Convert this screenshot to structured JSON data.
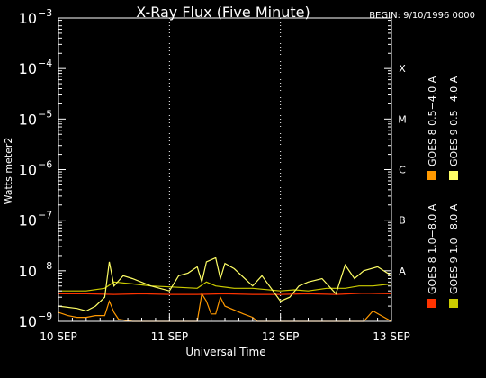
{
  "chart_data": {
    "type": "line",
    "title": "X-Ray Flux (Five Minute)",
    "begin_label": "BEGIN: 9/10/1996 0000",
    "xlabel": "Universal Time",
    "ylabel": "Watts meter2",
    "y_scale": "log",
    "ylim": [
      1e-09,
      0.001
    ],
    "xlim": [
      "1996-09-10T00:00",
      "1996-09-13T00:00"
    ],
    "y_ticks": [
      {
        "value": 1e-09,
        "base": "10",
        "exp": "−9"
      },
      {
        "value": 1e-08,
        "base": "10",
        "exp": "−8"
      },
      {
        "value": 1e-07,
        "base": "10",
        "exp": "−7"
      },
      {
        "value": 1e-06,
        "base": "10",
        "exp": "−6"
      },
      {
        "value": 1e-05,
        "base": "10",
        "exp": "−5"
      },
      {
        "value": 0.0001,
        "base": "10",
        "exp": "−4"
      },
      {
        "value": 0.001,
        "base": "10",
        "exp": "−3"
      }
    ],
    "x_ticks": [
      {
        "value": "1996-09-10T00:00",
        "label": "10 SEP"
      },
      {
        "value": "1996-09-11T00:00",
        "label": "11 SEP"
      },
      {
        "value": "1996-09-12T00:00",
        "label": "12 SEP"
      },
      {
        "value": "1996-09-13T00:00",
        "label": "13 SEP"
      }
    ],
    "flare_classes": [
      {
        "label": "X",
        "value": 0.0001
      },
      {
        "label": "M",
        "value": 1e-05
      },
      {
        "label": "C",
        "value": 1e-06
      },
      {
        "label": "B",
        "value": 1e-07
      },
      {
        "label": "A",
        "value": 1e-08
      }
    ],
    "grid": {
      "vertical_day_lines": true,
      "horizontal_lines": false
    },
    "legend_placement": "right",
    "series": [
      {
        "name": "GOES 8 1.0−8.0 A",
        "color": "#ff3300",
        "x": [
          "1996-09-10T00:00",
          "1996-09-10T06:00",
          "1996-09-10T12:00",
          "1996-09-10T18:00",
          "1996-09-11T00:00",
          "1996-09-11T06:00",
          "1996-09-11T12:00",
          "1996-09-11T18:00",
          "1996-09-12T00:00",
          "1996-09-12T06:00",
          "1996-09-12T12:00",
          "1996-09-12T18:00",
          "1996-09-13T00:00"
        ],
        "y": [
          3.5e-09,
          3.5e-09,
          3.4e-09,
          3.5e-09,
          3.4e-09,
          3.4e-09,
          3.5e-09,
          3.4e-09,
          3.4e-09,
          3.5e-09,
          3.4e-09,
          3.6e-09,
          3.5e-09
        ]
      },
      {
        "name": "GOES 8 0.5−4.0 A",
        "color": "#ff9900",
        "x": [
          "1996-09-10T00:00",
          "1996-09-10T02:00",
          "1996-09-10T04:00",
          "1996-09-10T06:00",
          "1996-09-10T08:00",
          "1996-09-10T10:00",
          "1996-09-10T11:00",
          "1996-09-10T12:00",
          "1996-09-10T13:00",
          "1996-09-10T16:00",
          "1996-09-10T20:00",
          "1996-09-11T00:00",
          "1996-09-11T04:00",
          "1996-09-11T06:00",
          "1996-09-11T07:00",
          "1996-09-11T08:00",
          "1996-09-11T09:00",
          "1996-09-11T10:00",
          "1996-09-11T11:00",
          "1996-09-11T12:00",
          "1996-09-11T16:00",
          "1996-09-11T18:00",
          "1996-09-11T19:00",
          "1996-09-12T00:00",
          "1996-09-12T06:00",
          "1996-09-12T12:00",
          "1996-09-12T16:00",
          "1996-09-12T18:00",
          "1996-09-12T20:00",
          "1996-09-13T00:00"
        ],
        "y": [
          1.5e-09,
          1.3e-09,
          1.2e-09,
          1.2e-09,
          1.3e-09,
          1.3e-09,
          2.5e-09,
          1.5e-09,
          1.1e-09,
          1e-09,
          1e-09,
          1e-09,
          1e-09,
          1e-09,
          3.5e-09,
          2.5e-09,
          1.4e-09,
          1.4e-09,
          3e-09,
          2e-09,
          1.4e-09,
          1.2e-09,
          1e-09,
          1e-09,
          1e-09,
          1e-09,
          1e-09,
          1e-09,
          1.6e-09,
          1e-09
        ]
      },
      {
        "name": "GOES 9 1.0−8.0 A",
        "color": "#cccc00",
        "x": [
          "1996-09-10T00:00",
          "1996-09-10T06:00",
          "1996-09-10T10:00",
          "1996-09-10T12:00",
          "1996-09-10T16:00",
          "1996-09-10T20:00",
          "1996-09-11T00:00",
          "1996-09-11T06:00",
          "1996-09-11T08:00",
          "1996-09-11T10:00",
          "1996-09-11T14:00",
          "1996-09-11T18:00",
          "1996-09-12T00:00",
          "1996-09-12T03:00",
          "1996-09-12T06:00",
          "1996-09-12T10:00",
          "1996-09-12T14:00",
          "1996-09-12T17:00",
          "1996-09-12T20:00",
          "1996-09-13T00:00"
        ],
        "y": [
          4e-09,
          4e-09,
          4.5e-09,
          6e-09,
          5.5e-09,
          5e-09,
          4.8e-09,
          4.5e-09,
          6e-09,
          5e-09,
          4.5e-09,
          4.5e-09,
          4e-09,
          4.2e-09,
          4e-09,
          4.5e-09,
          4.5e-09,
          5e-09,
          5e-09,
          5.5e-09
        ]
      },
      {
        "name": "GOES 9 0.5−4.0 A",
        "color": "#ffff66",
        "x": [
          "1996-09-10T00:00",
          "1996-09-10T04:00",
          "1996-09-10T06:00",
          "1996-09-10T08:00",
          "1996-09-10T10:00",
          "1996-09-10T11:00",
          "1996-09-10T12:00",
          "1996-09-10T14:00",
          "1996-09-10T16:00",
          "1996-09-10T20:00",
          "1996-09-11T00:00",
          "1996-09-11T02:00",
          "1996-09-11T04:00",
          "1996-09-11T06:00",
          "1996-09-11T07:00",
          "1996-09-11T08:00",
          "1996-09-11T10:00",
          "1996-09-11T11:00",
          "1996-09-11T12:00",
          "1996-09-11T14:00",
          "1996-09-11T18:00",
          "1996-09-11T20:00",
          "1996-09-12T00:00",
          "1996-09-12T02:00",
          "1996-09-12T04:00",
          "1996-09-12T06:00",
          "1996-09-12T09:00",
          "1996-09-12T12:00",
          "1996-09-12T14:00",
          "1996-09-12T16:00",
          "1996-09-12T18:00",
          "1996-09-12T21:00",
          "1996-09-13T00:00"
        ],
        "y": [
          2e-09,
          1.8e-09,
          1.6e-09,
          2e-09,
          3e-09,
          1.5e-08,
          5e-09,
          8e-09,
          7e-09,
          5e-09,
          4e-09,
          8e-09,
          9e-09,
          1.2e-08,
          6e-09,
          1.5e-08,
          1.8e-08,
          7e-09,
          1.4e-08,
          1.1e-08,
          5e-09,
          8e-09,
          2.5e-09,
          3e-09,
          5e-09,
          6e-09,
          7e-09,
          3.5e-09,
          1.3e-08,
          7e-09,
          1e-08,
          1.2e-08,
          8e-09
        ]
      }
    ]
  }
}
